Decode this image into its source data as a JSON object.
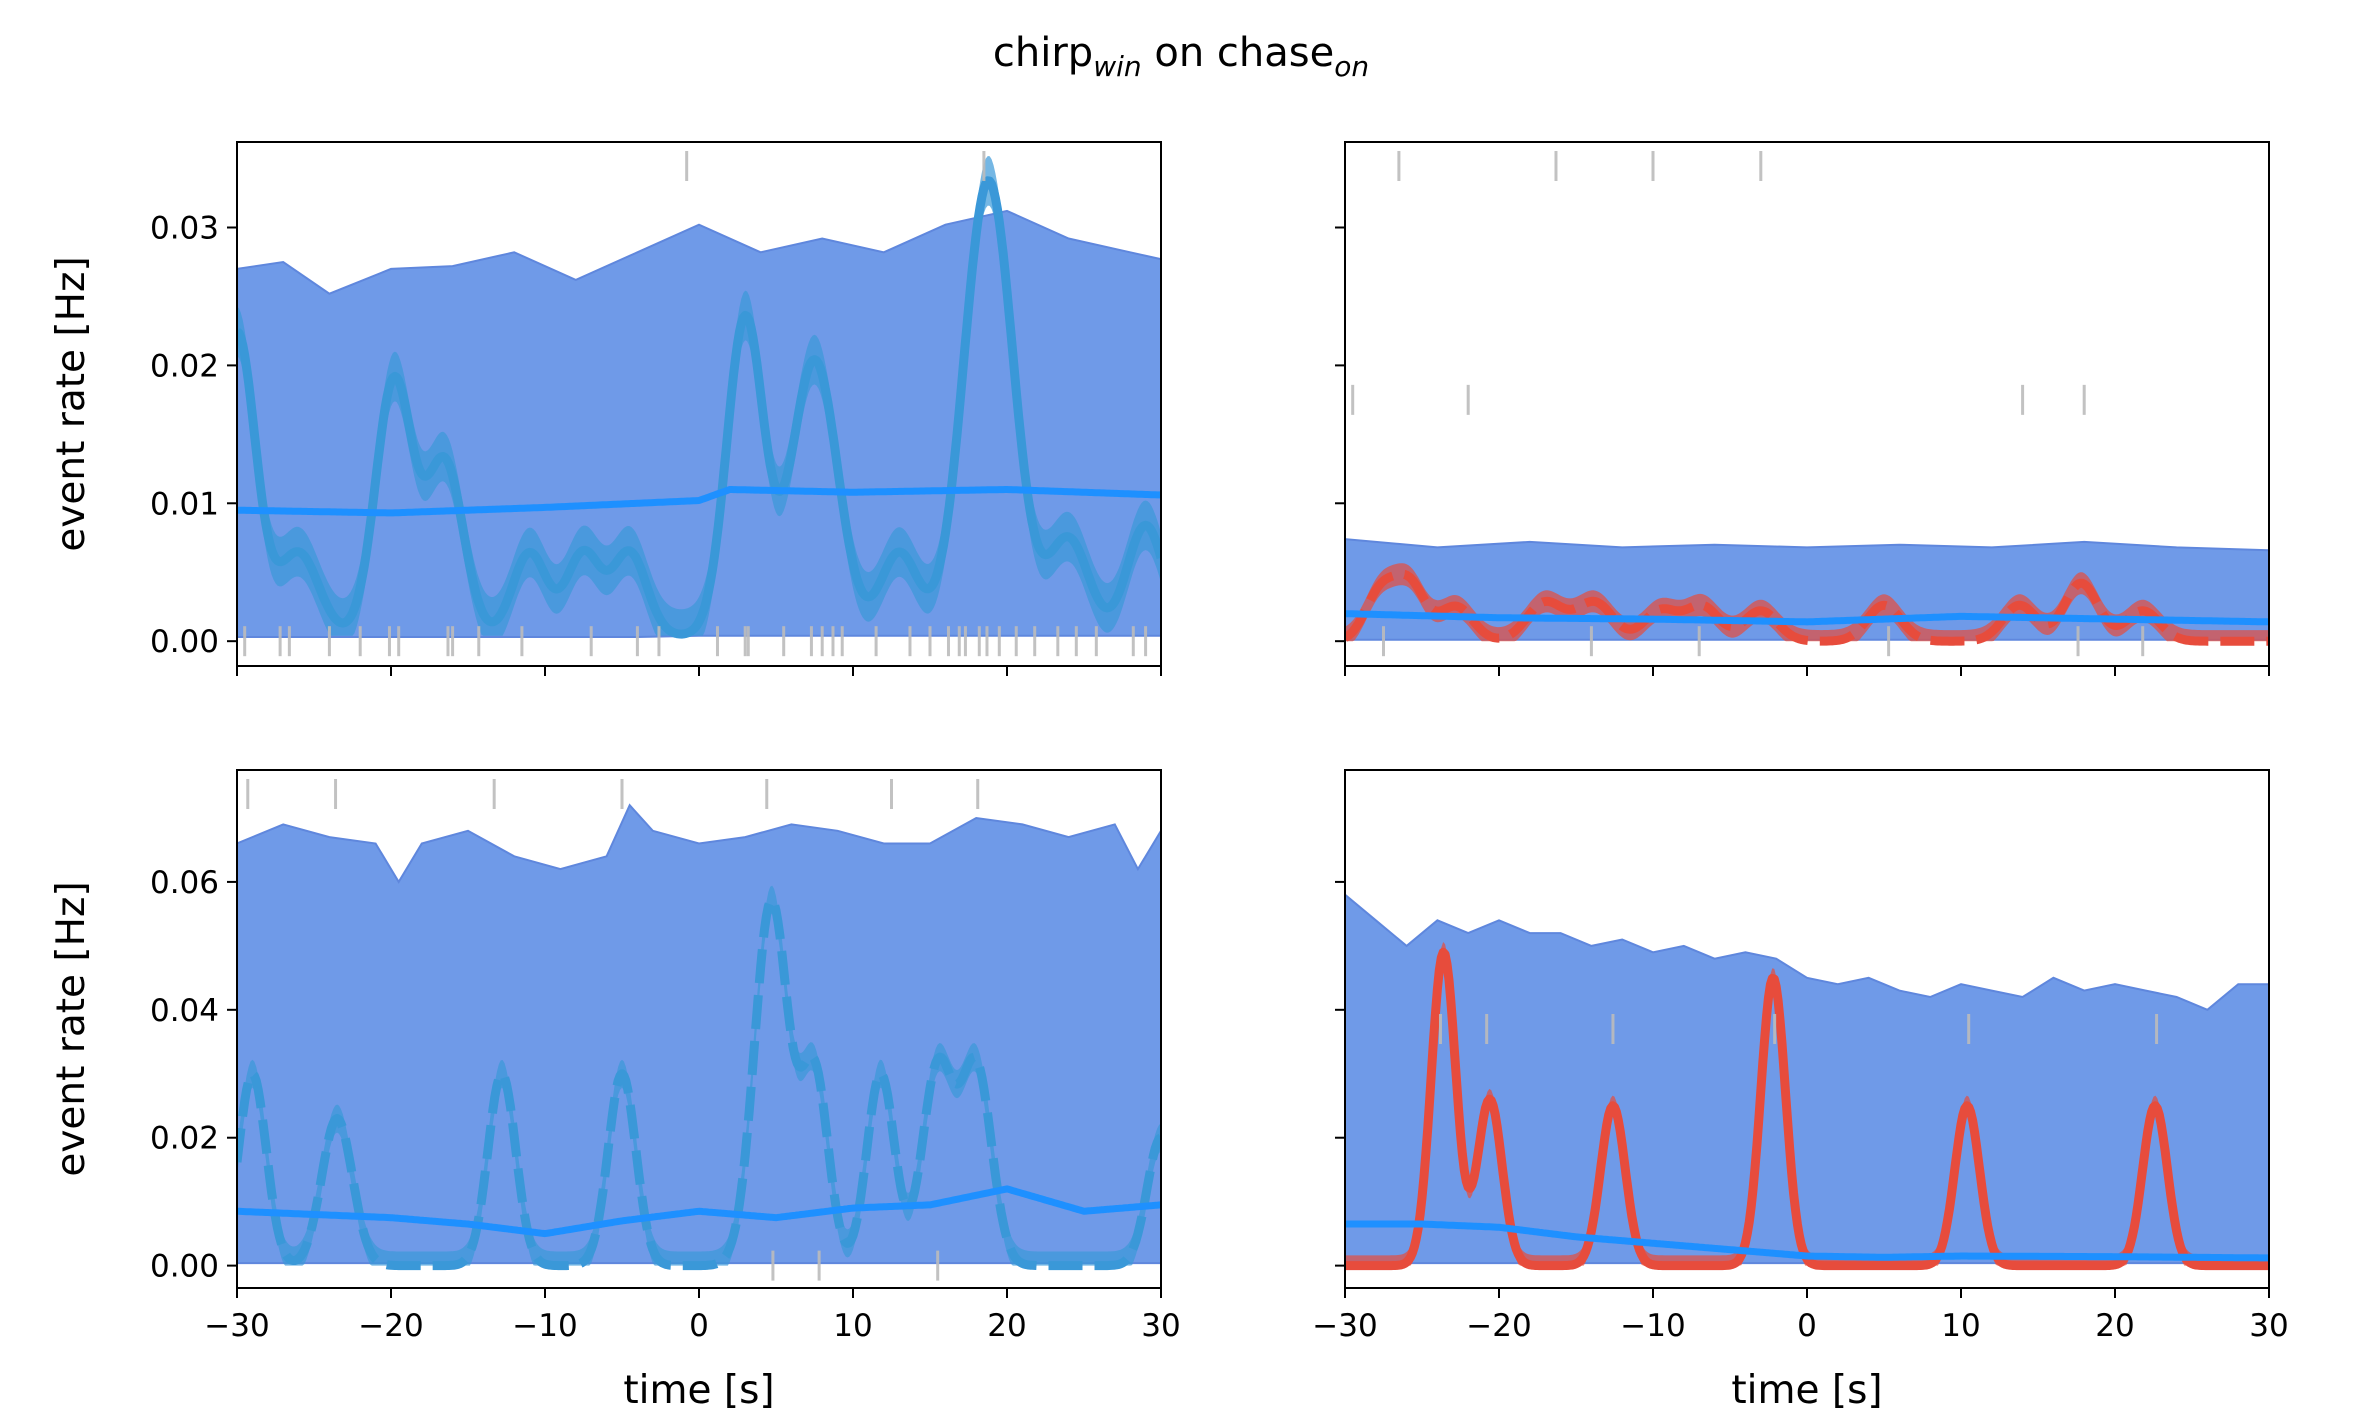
{
  "title": {
    "base1": "chirp",
    "sub1": "win",
    "mid": " on chase",
    "sub2": "on"
  },
  "colors": {
    "band": "#6f9ae8",
    "band_edge": "#5f87dd",
    "mean": "#1e90ff",
    "event_blue": "#3a98d8",
    "event_red": "#e74c3c",
    "raster": "#bbbbbb"
  },
  "chart_data": [
    {
      "type": "area",
      "panel": "top-left",
      "xlabel": "",
      "ylabel": "event rate [Hz]",
      "xlim": [
        -30,
        30
      ],
      "ylim": [
        -0.0018,
        0.0362
      ],
      "xticks": [
        -30,
        -20,
        -10,
        0,
        10,
        20,
        30
      ],
      "xtick_labels_visible": false,
      "yticks": [
        0.0,
        0.01,
        0.02,
        0.03
      ],
      "ytick_labels": [
        "0.00",
        "0.01",
        "0.02",
        "0.03"
      ],
      "event_color": "blue",
      "event_style": "solid",
      "band": {
        "x": [
          -30,
          -27,
          -24,
          -20,
          -16,
          -12,
          -8,
          -4,
          0,
          4,
          8,
          12,
          16,
          20,
          24,
          28,
          30
        ],
        "lower": [
          0.0003,
          0.0003,
          0.0003,
          0.0003,
          0.0003,
          0.0003,
          0.0003,
          0.0003,
          0.0004,
          0.0004,
          0.0004,
          0.0004,
          0.0004,
          0.0004,
          0.0004,
          0.0004,
          0.0004
        ],
        "upper": [
          0.027,
          0.0275,
          0.0252,
          0.027,
          0.0272,
          0.0282,
          0.0262,
          0.0282,
          0.0302,
          0.0282,
          0.0292,
          0.0282,
          0.0302,
          0.0312,
          0.0292,
          0.0282,
          0.0277
        ]
      },
      "mean": {
        "x": [
          -30,
          -20,
          -10,
          0,
          2,
          10,
          20,
          30
        ],
        "y": [
          0.0095,
          0.0093,
          0.0097,
          0.0102,
          0.011,
          0.0108,
          0.011,
          0.0106
        ]
      },
      "event_peaks": [
        {
          "x": -30,
          "height": 0.022,
          "width": 1.2
        },
        {
          "x": -26,
          "height": 0.006,
          "width": 1.3
        },
        {
          "x": -19.8,
          "height": 0.0185,
          "width": 1.2
        },
        {
          "x": -16.5,
          "height": 0.0125,
          "width": 1.2
        },
        {
          "x": -11,
          "height": 0.006,
          "width": 1.1
        },
        {
          "x": -7.5,
          "height": 0.006,
          "width": 1.1
        },
        {
          "x": -4.5,
          "height": 0.006,
          "width": 1.1
        },
        {
          "x": 3,
          "height": 0.023,
          "width": 1.2
        },
        {
          "x": 7.5,
          "height": 0.02,
          "width": 1.5
        },
        {
          "x": 13,
          "height": 0.006,
          "width": 1.2
        },
        {
          "x": 18.8,
          "height": 0.033,
          "width": 1.6
        },
        {
          "x": 24,
          "height": 0.007,
          "width": 1.3
        },
        {
          "x": 29,
          "height": 0.008,
          "width": 1.2
        }
      ],
      "event_floor": 0.0004,
      "event_band_halfwidth": 0.0018,
      "raster_top_x": [
        -0.8,
        18.5
      ],
      "raster_bottom_x": [
        -29.5,
        -27.2,
        -26.6,
        -24,
        -22,
        -20.1,
        -19.5,
        -16.3,
        -16,
        -14.3,
        -11.5,
        -7,
        -4,
        -2.6,
        1.2,
        3,
        3.2,
        5.5,
        7.3,
        8,
        8.7,
        9.3,
        11.5,
        13.7,
        15,
        16.2,
        16.9,
        17.3,
        18.2,
        18.7,
        19.5,
        20.6,
        21.8,
        23.3,
        24.5,
        25.8,
        28.2,
        29
      ]
    },
    {
      "type": "area",
      "panel": "top-right",
      "xlabel": "",
      "ylabel": "",
      "xlim": [
        -30,
        30
      ],
      "ylim": [
        -0.0018,
        0.0362
      ],
      "xticks": [
        -30,
        -20,
        -10,
        0,
        10,
        20,
        30
      ],
      "xtick_labels_visible": false,
      "yticks": [
        0.0,
        0.01,
        0.02,
        0.03
      ],
      "ytick_labels": [],
      "event_color": "red",
      "event_style": "dashed",
      "band": {
        "x": [
          -30,
          -24,
          -18,
          -12,
          -6,
          0,
          6,
          12,
          18,
          24,
          30
        ],
        "lower": [
          0.0001,
          0.0001,
          0.0001,
          0.0001,
          0.0001,
          0.0001,
          0.0001,
          0.0001,
          0.0001,
          0.0001,
          0.0001
        ],
        "upper": [
          0.0074,
          0.0068,
          0.0072,
          0.0068,
          0.007,
          0.0068,
          0.007,
          0.0068,
          0.0072,
          0.0068,
          0.0066
        ]
      },
      "mean": {
        "x": [
          -30,
          -20,
          -10,
          0,
          10,
          20,
          30
        ],
        "y": [
          0.002,
          0.0017,
          0.0016,
          0.0014,
          0.0018,
          0.0016,
          0.0014
        ]
      },
      "event_peaks": [
        {
          "x": -27.7,
          "height": 0.0035,
          "width": 1.0
        },
        {
          "x": -25.8,
          "height": 0.004,
          "width": 1.0
        },
        {
          "x": -22.8,
          "height": 0.0025,
          "width": 1.1
        },
        {
          "x": -17,
          "height": 0.0028,
          "width": 1.2
        },
        {
          "x": -13.8,
          "height": 0.0028,
          "width": 1.2
        },
        {
          "x": -9.5,
          "height": 0.0022,
          "width": 1.1
        },
        {
          "x": -6.8,
          "height": 0.0025,
          "width": 1.1
        },
        {
          "x": -3,
          "height": 0.0022,
          "width": 1.1
        },
        {
          "x": 5,
          "height": 0.0026,
          "width": 1.1
        },
        {
          "x": 13.8,
          "height": 0.0026,
          "width": 1.1
        },
        {
          "x": 17.8,
          "height": 0.0042,
          "width": 1.1
        },
        {
          "x": 21.8,
          "height": 0.0022,
          "width": 1.1
        }
      ],
      "event_floor": 0.0,
      "event_band_halfwidth": 0.0008,
      "raster_top_x": [
        -26.5,
        -16.3,
        -10,
        -3
      ],
      "raster_mid_x": [
        -29.5,
        -22,
        14,
        18
      ],
      "raster_mid_y": 0.0175,
      "raster_bottom_x": [
        -27.5,
        -14,
        -7,
        5.3,
        17.6,
        21.8
      ]
    },
    {
      "type": "area",
      "panel": "bottom-left",
      "xlabel": "time [s]",
      "ylabel": "event rate [Hz]",
      "xlim": [
        -30,
        30
      ],
      "ylim": [
        -0.0035,
        0.0775
      ],
      "xticks": [
        -30,
        -20,
        -10,
        0,
        10,
        20,
        30
      ],
      "xtick_labels_visible": true,
      "xtick_labels": [
        "−30",
        "−20",
        "−10",
        "0",
        "10",
        "20",
        "30"
      ],
      "yticks": [
        0.0,
        0.02,
        0.04,
        0.06
      ],
      "ytick_labels": [
        "0.00",
        "0.02",
        "0.04",
        "0.06"
      ],
      "event_color": "blue",
      "event_style": "dashed",
      "band": {
        "x": [
          -30,
          -27,
          -24,
          -21,
          -19.5,
          -18,
          -15,
          -12,
          -9,
          -6,
          -4.5,
          -3,
          0,
          3,
          6,
          9,
          12,
          15,
          18,
          21,
          24,
          27,
          28.5,
          30
        ],
        "lower": [
          0.0004,
          0.0004,
          0.0004,
          0.0004,
          0.0004,
          0.0004,
          0.0004,
          0.0004,
          0.0004,
          0.0004,
          0.0004,
          0.0004,
          0.0004,
          0.0004,
          0.0004,
          0.0004,
          0.0004,
          0.0004,
          0.0004,
          0.0004,
          0.0004,
          0.0004,
          0.0004,
          0.0004
        ],
        "upper": [
          0.066,
          0.069,
          0.067,
          0.066,
          0.06,
          0.066,
          0.068,
          0.064,
          0.062,
          0.064,
          0.072,
          0.068,
          0.066,
          0.067,
          0.069,
          0.068,
          0.066,
          0.066,
          0.07,
          0.069,
          0.067,
          0.069,
          0.062,
          0.068
        ]
      },
      "mean": {
        "x": [
          -30,
          -20,
          -15,
          -10,
          -5,
          0,
          5,
          10,
          15,
          20,
          25,
          30
        ],
        "y": [
          0.0085,
          0.0075,
          0.0065,
          0.005,
          0.007,
          0.0085,
          0.0075,
          0.009,
          0.0095,
          0.012,
          0.0085,
          0.0095
        ]
      },
      "event_peaks": [
        {
          "x": -29,
          "height": 0.03,
          "width": 0.9
        },
        {
          "x": -23.5,
          "height": 0.023,
          "width": 1.0
        },
        {
          "x": -12.8,
          "height": 0.03,
          "width": 0.9
        },
        {
          "x": -5,
          "height": 0.03,
          "width": 0.9
        },
        {
          "x": 4.7,
          "height": 0.057,
          "width": 1.1
        },
        {
          "x": 7.5,
          "height": 0.03,
          "width": 0.9
        },
        {
          "x": 11.8,
          "height": 0.03,
          "width": 0.9
        },
        {
          "x": 15.5,
          "height": 0.031,
          "width": 1.0
        },
        {
          "x": 18,
          "height": 0.031,
          "width": 1.0
        },
        {
          "x": 30,
          "height": 0.02,
          "width": 0.9
        }
      ],
      "event_floor": 0.0,
      "event_band_halfwidth": 0.0022,
      "raster_top_x": [
        -29.3,
        -23.6,
        -13.3,
        -5,
        4.4,
        12.5,
        18.1
      ],
      "raster_bottom_x": [
        4.8,
        7.8,
        15.5
      ]
    },
    {
      "type": "area",
      "panel": "bottom-right",
      "xlabel": "time [s]",
      "ylabel": "",
      "xlim": [
        -30,
        30
      ],
      "ylim": [
        -0.0035,
        0.0775
      ],
      "xticks": [
        -30,
        -20,
        -10,
        0,
        10,
        20,
        30
      ],
      "xtick_labels_visible": true,
      "xtick_labels": [
        "−30",
        "−20",
        "−10",
        "0",
        "10",
        "20",
        "30"
      ],
      "yticks": [
        0.0,
        0.02,
        0.04,
        0.06
      ],
      "ytick_labels": [],
      "event_color": "red",
      "event_style": "solid",
      "band": {
        "x": [
          -30,
          -28,
          -26,
          -24,
          -22,
          -20,
          -18,
          -16,
          -14,
          -12,
          -10,
          -8,
          -6,
          -4,
          -2,
          0,
          2,
          4,
          6,
          8,
          10,
          12,
          14,
          16,
          18,
          20,
          22,
          24,
          26,
          28,
          30
        ],
        "lower": [
          0.0004,
          0.0004,
          0.0004,
          0.0004,
          0.0004,
          0.0004,
          0.0004,
          0.0004,
          0.0004,
          0.0004,
          0.0004,
          0.0004,
          0.0004,
          0.0004,
          0.0004,
          0.0004,
          0.0004,
          0.0004,
          0.0004,
          0.0004,
          0.0004,
          0.0004,
          0.0004,
          0.0004,
          0.0004,
          0.0004,
          0.0004,
          0.0004,
          0.0004,
          0.0004,
          0.0004
        ],
        "upper": [
          0.058,
          0.054,
          0.05,
          0.054,
          0.052,
          0.054,
          0.052,
          0.052,
          0.05,
          0.051,
          0.049,
          0.05,
          0.048,
          0.049,
          0.048,
          0.045,
          0.044,
          0.045,
          0.043,
          0.042,
          0.044,
          0.043,
          0.042,
          0.045,
          0.043,
          0.044,
          0.043,
          0.042,
          0.04,
          0.044,
          0.044
        ]
      },
      "mean": {
        "x": [
          -30,
          -25,
          -20,
          -15,
          -10,
          -5,
          0,
          5,
          10,
          20,
          30
        ],
        "y": [
          0.0065,
          0.0065,
          0.006,
          0.0045,
          0.0035,
          0.0025,
          0.0015,
          0.0013,
          0.0015,
          0.0014,
          0.0012
        ]
      },
      "event_peaks": [
        {
          "x": -23.6,
          "height": 0.049,
          "width": 0.8
        },
        {
          "x": -20.6,
          "height": 0.026,
          "width": 0.8
        },
        {
          "x": -12.6,
          "height": 0.025,
          "width": 0.8
        },
        {
          "x": -2.2,
          "height": 0.045,
          "width": 0.8
        },
        {
          "x": 10.4,
          "height": 0.025,
          "width": 0.8
        },
        {
          "x": 22.6,
          "height": 0.025,
          "width": 0.8
        }
      ],
      "event_floor": 0.0,
      "event_band_halfwidth": 0.0016,
      "raster_top_x": [],
      "raster_mid_x": [
        -23.8,
        -20.8,
        -12.6,
        -2.1,
        10.5,
        22.7
      ],
      "raster_mid_y": 0.037,
      "raster_bottom_x": []
    }
  ]
}
